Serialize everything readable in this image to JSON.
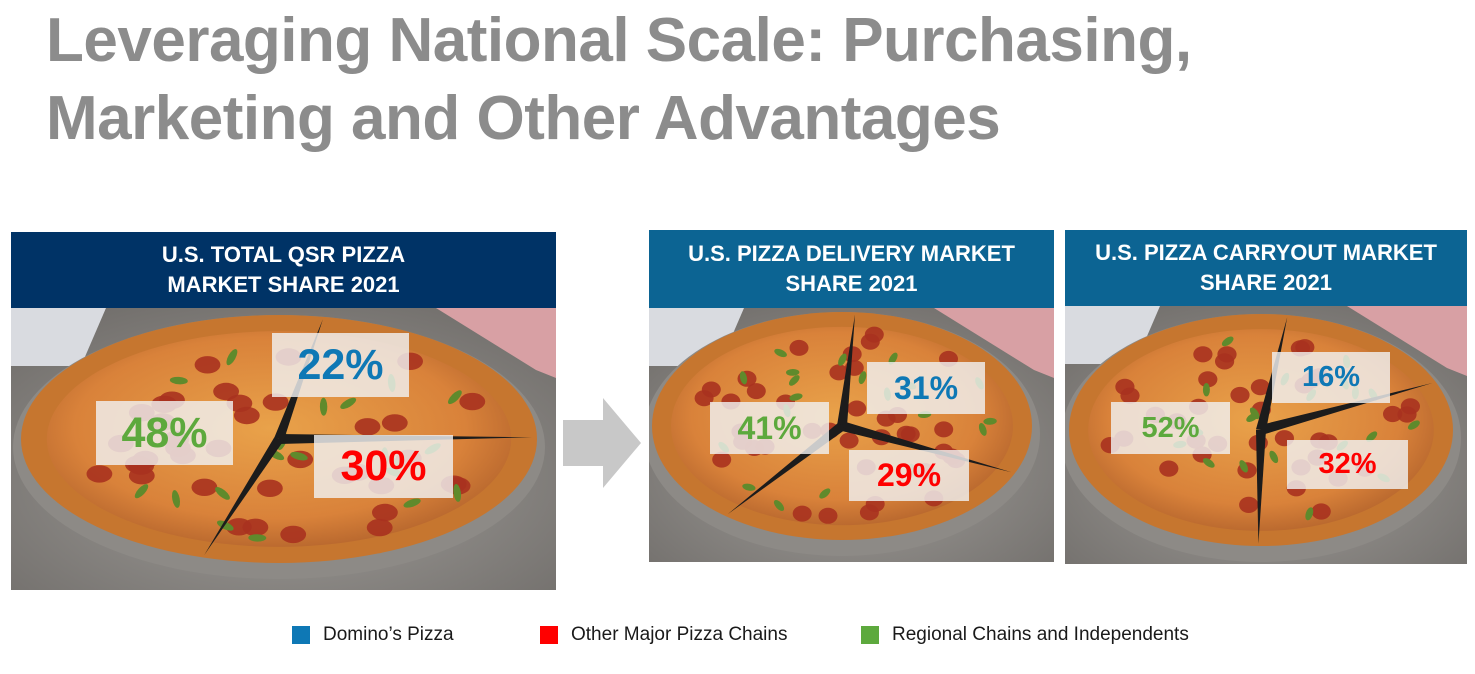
{
  "title": "Leveraging National Scale: Purchasing, Marketing and Other Advantages",
  "colors": {
    "dominos": "#0e78b5",
    "other_major": "#ff0000",
    "regional": "#5da93d",
    "header_dark": "#003366",
    "header_teal": "#0c6493",
    "arrow": "#c8c8c8"
  },
  "legend": [
    {
      "label": "Domino’s Pizza",
      "color": "#0e78b5"
    },
    {
      "label": "Other Major Pizza Chains",
      "color": "#ff0000"
    },
    {
      "label": "Regional Chains and Independents",
      "color": "#5da93d"
    }
  ],
  "chart_data": [
    {
      "type": "pie",
      "title": "U.S. TOTAL QSR PIZZA\nMARKET SHARE 2021",
      "categories": [
        "Domino’s Pizza",
        "Other Major Pizza Chains",
        "Regional Chains and Independents"
      ],
      "values": [
        22,
        30,
        48
      ],
      "labels": [
        "22%",
        "30%",
        "48%"
      ]
    },
    {
      "type": "pie",
      "title": "U.S. PIZZA DELIVERY MARKET\nSHARE 2021",
      "categories": [
        "Domino’s Pizza",
        "Other Major Pizza Chains",
        "Regional Chains and Independents"
      ],
      "values": [
        31,
        29,
        41
      ],
      "labels": [
        "31%",
        "29%",
        "41%"
      ]
    },
    {
      "type": "pie",
      "title": "U.S. PIZZA CARRYOUT MARKET\nSHARE 2021",
      "categories": [
        "Domino’s Pizza",
        "Other Major Pizza Chains",
        "Regional Chains and Independents"
      ],
      "values": [
        16,
        32,
        52
      ],
      "labels": [
        "16%",
        "32%",
        "52%"
      ]
    }
  ]
}
